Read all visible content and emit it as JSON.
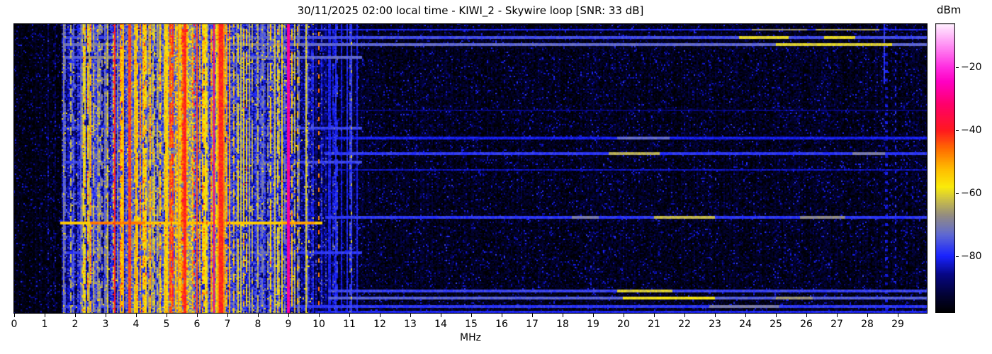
{
  "chart_data": {
    "type": "heatmap",
    "variant": "radio-spectrum-waterfall",
    "title": "30/11/2025 02:00 local time - KIWI_2 - Skywire loop [SNR: 33 dB]",
    "xlabel": "MHz",
    "x_range_mhz": [
      0,
      30
    ],
    "xticks": [
      0,
      1,
      2,
      3,
      4,
      5,
      6,
      7,
      8,
      9,
      10,
      11,
      12,
      13,
      14,
      15,
      16,
      17,
      18,
      19,
      20,
      21,
      22,
      23,
      24,
      25,
      26,
      27,
      28,
      29
    ],
    "yticks": [],
    "colorbar": {
      "label": "dBm",
      "ticks": [
        -20,
        -40,
        -60,
        -80
      ],
      "value_range_dbm": [
        -98,
        -6
      ]
    },
    "colormap_stops": [
      [
        0.0,
        0,
        0,
        0
      ],
      [
        0.055,
        2,
        2,
        46
      ],
      [
        0.13,
        6,
        6,
        130
      ],
      [
        0.196,
        25,
        35,
        255
      ],
      [
        0.27,
        95,
        105,
        210
      ],
      [
        0.34,
        150,
        142,
        125
      ],
      [
        0.4,
        212,
        200,
        60
      ],
      [
        0.435,
        250,
        235,
        10
      ],
      [
        0.5,
        255,
        185,
        0
      ],
      [
        0.565,
        255,
        110,
        0
      ],
      [
        0.63,
        255,
        25,
        30
      ],
      [
        0.72,
        255,
        0,
        105
      ],
      [
        0.8,
        255,
        0,
        195
      ],
      [
        0.85,
        255,
        45,
        225
      ],
      [
        0.93,
        255,
        150,
        245
      ],
      [
        1.0,
        255,
        240,
        255
      ]
    ],
    "noise_seed": 7,
    "bands": [
      {
        "f0": 0.0,
        "f1": 1.55,
        "base": -96,
        "noise": 3,
        "cv": 1.5,
        "sp": 0.05,
        "b0": 3,
        "b1": 7
      },
      {
        "f0": 1.55,
        "f1": 2.05,
        "base": -87,
        "noise": 6,
        "cv": 4,
        "sp": 0.45,
        "b0": 8,
        "b1": 24
      },
      {
        "f0": 2.05,
        "f1": 2.7,
        "base": -80,
        "noise": 7,
        "cv": 5,
        "sp": 0.55,
        "b0": 10,
        "b1": 30
      },
      {
        "f0": 2.7,
        "f1": 3.15,
        "base": -83,
        "noise": 7,
        "cv": 5,
        "sp": 0.45,
        "b0": 8,
        "b1": 26
      },
      {
        "f0": 3.15,
        "f1": 3.65,
        "base": -79,
        "noise": 7,
        "cv": 5,
        "sp": 0.55,
        "b0": 10,
        "b1": 34
      },
      {
        "f0": 3.65,
        "f1": 4.35,
        "base": -75,
        "noise": 8,
        "cv": 5,
        "sp": 0.6,
        "b0": 10,
        "b1": 32
      },
      {
        "f0": 4.35,
        "f1": 5.05,
        "base": -79,
        "noise": 8,
        "cv": 5,
        "sp": 0.55,
        "b0": 8,
        "b1": 28
      },
      {
        "f0": 5.05,
        "f1": 5.95,
        "base": -68,
        "noise": 9,
        "cv": 5,
        "sp": 0.7,
        "b0": 8,
        "b1": 26
      },
      {
        "f0": 5.95,
        "f1": 6.45,
        "base": -76,
        "noise": 8,
        "cv": 5,
        "sp": 0.5,
        "b0": 8,
        "b1": 24
      },
      {
        "f0": 6.45,
        "f1": 7.15,
        "base": -77,
        "noise": 8,
        "cv": 5,
        "sp": 0.55,
        "b0": 10,
        "b1": 30
      },
      {
        "f0": 7.15,
        "f1": 7.65,
        "base": -78,
        "noise": 8,
        "cv": 5,
        "sp": 0.5,
        "b0": 8,
        "b1": 24
      },
      {
        "f0": 7.65,
        "f1": 8.35,
        "base": -84,
        "noise": 7,
        "cv": 5,
        "sp": 0.45,
        "b0": 6,
        "b1": 20
      },
      {
        "f0": 8.35,
        "f1": 9.25,
        "base": -79,
        "noise": 8,
        "cv": 5,
        "sp": 0.5,
        "b0": 9,
        "b1": 26
      },
      {
        "f0": 9.25,
        "f1": 9.85,
        "base": -87,
        "noise": 6,
        "cv": 4,
        "sp": 0.35,
        "b0": 6,
        "b1": 20
      },
      {
        "f0": 9.85,
        "f1": 10.25,
        "base": -92,
        "noise": 5,
        "cv": 3,
        "sp": 0.15,
        "b0": 5,
        "b1": 12
      },
      {
        "f0": 10.25,
        "f1": 11.45,
        "base": -94,
        "noise": 4,
        "cv": 2,
        "sp": 0.12,
        "b0": 8,
        "b1": 16
      },
      {
        "f0": 11.45,
        "f1": 30.01,
        "base": -95,
        "noise": 4,
        "cv": 1.5,
        "sp": 0,
        "b0": 0,
        "b1": 0
      }
    ],
    "vertical_lines": [
      {
        "f": 1.3,
        "v": -88,
        "hw": 0.6,
        "dash": [
          3,
          9
        ]
      },
      {
        "f": 1.63,
        "v": -72,
        "hw": 0.6
      },
      {
        "f": 1.84,
        "v": -63,
        "hw": 0.6,
        "dash": [
          6,
          3
        ]
      },
      {
        "f": 2.2,
        "v": -74,
        "hw": 0.6
      },
      {
        "f": 2.48,
        "v": -64,
        "hw": 0.6
      },
      {
        "f": 2.75,
        "v": -70,
        "hw": 0.6,
        "dash": [
          5,
          6
        ]
      },
      {
        "f": 2.9,
        "v": -66,
        "hw": 0.6,
        "dash": [
          5,
          7
        ]
      },
      {
        "f": 3.07,
        "v": -68,
        "hw": 0.6,
        "dash": [
          4,
          8
        ]
      },
      {
        "f": 3.24,
        "v": -36,
        "hw": 0.6,
        "dash": [
          1,
          4
        ]
      },
      {
        "f": 3.3,
        "v": -41,
        "hw": 1.2
      },
      {
        "f": 3.58,
        "v": -52,
        "hw": 0.6
      },
      {
        "f": 3.78,
        "v": -43,
        "hw": 1.2
      },
      {
        "f": 3.98,
        "v": -52,
        "hw": 0.6
      },
      {
        "f": 4.25,
        "v": -60,
        "hw": 0.6,
        "dash": [
          8,
          5
        ]
      },
      {
        "f": 4.47,
        "v": -56,
        "hw": 0.6,
        "dash": [
          10,
          4
        ]
      },
      {
        "f": 5.0,
        "v": -55,
        "hw": 0.6
      },
      {
        "f": 5.38,
        "v": -50,
        "hw": 0.6
      },
      {
        "f": 5.62,
        "v": -41,
        "hw": 1.2
      },
      {
        "f": 5.92,
        "v": -36,
        "hw": 0.6,
        "dash": [
          2,
          6
        ]
      },
      {
        "f": 6.02,
        "v": -44,
        "hw": 0.6
      },
      {
        "f": 6.28,
        "v": -58,
        "hw": 0.6
      },
      {
        "f": 6.55,
        "v": -31,
        "hw": 0.6
      },
      {
        "f": 6.72,
        "v": -48,
        "hw": 0.6
      },
      {
        "f": 6.8,
        "v": -41,
        "hw": 2.2
      },
      {
        "f": 6.9,
        "v": -48,
        "hw": 0.6
      },
      {
        "f": 7.05,
        "v": -52,
        "hw": 0.6
      },
      {
        "f": 7.2,
        "v": -54,
        "hw": 0.6,
        "dash": [
          6,
          6
        ]
      },
      {
        "f": 7.45,
        "v": -62,
        "hw": 0.6
      },
      {
        "f": 7.7,
        "v": -64,
        "hw": 0.6
      },
      {
        "f": 8.0,
        "v": -63,
        "hw": 0.6,
        "dash": [
          3,
          5
        ]
      },
      {
        "f": 8.57,
        "v": -62,
        "hw": 0.6
      },
      {
        "f": 8.78,
        "v": -60,
        "hw": 0.6
      },
      {
        "f": 9.0,
        "v": -28,
        "hw": 1.2
      },
      {
        "f": 9.3,
        "v": -52,
        "hw": 0.6,
        "dash": [
          4,
          8
        ]
      },
      {
        "f": 9.58,
        "v": -61,
        "hw": 0.6
      },
      {
        "f": 10.0,
        "v": -47,
        "hw": 0.6,
        "dash": [
          3,
          7
        ]
      },
      {
        "f": 10.35,
        "v": -81,
        "hw": 0.6
      },
      {
        "f": 10.55,
        "v": -79,
        "hw": 0.6
      },
      {
        "f": 10.75,
        "v": -82,
        "hw": 0.6
      },
      {
        "f": 10.93,
        "v": -80,
        "hw": 0.6
      },
      {
        "f": 11.07,
        "v": -77,
        "hw": 1.2
      },
      {
        "f": 11.07,
        "v": -62,
        "hw": 0.6,
        "dash": [
          2,
          18
        ]
      },
      {
        "f": 11.27,
        "v": -81,
        "hw": 0.6
      },
      {
        "f": 28.57,
        "v": -78,
        "hw": 0.6,
        "y0": 0,
        "y1": 0.21
      },
      {
        "f": 28.63,
        "v": -82,
        "hw": 0.6,
        "dash": [
          2,
          4
        ]
      },
      {
        "f": 28.95,
        "v": -80,
        "hw": 0.6,
        "dash": [
          2,
          4
        ]
      },
      {
        "f": 29.3,
        "v": -84,
        "hw": 0.6,
        "dash": [
          2,
          5
        ]
      }
    ],
    "horizontal_lines": [
      {
        "y": 0.022,
        "f0": 1.6,
        "f1": 30,
        "v": -80,
        "segs": [
          [
            24.2,
            26.0,
            -66
          ],
          [
            26.3,
            28.4,
            -64
          ]
        ]
      },
      {
        "y": 0.048,
        "f0": 1.6,
        "f1": 30,
        "v": -76,
        "segs": [
          [
            23.8,
            25.4,
            -60
          ],
          [
            26.6,
            27.6,
            -60
          ]
        ]
      },
      {
        "y": 0.075,
        "f0": 1.6,
        "f1": 30,
        "v": -73,
        "segs": [
          [
            25.0,
            28.8,
            -61
          ],
          [
            2.0,
            9.5,
            -72
          ]
        ]
      },
      {
        "y": 0.115,
        "f0": 1.6,
        "f1": 11.4,
        "v": -73,
        "segs": [
          [
            2.2,
            4.5,
            -68
          ]
        ]
      },
      {
        "y": 0.3,
        "f0": 10.2,
        "f1": 30,
        "v": -87,
        "segs": []
      },
      {
        "y": 0.36,
        "f0": 1.6,
        "f1": 11.4,
        "v": -77,
        "segs": []
      },
      {
        "y": 0.395,
        "f0": 10.2,
        "f1": 30,
        "v": -81,
        "segs": [
          [
            19.8,
            21.5,
            -73
          ]
        ]
      },
      {
        "y": 0.45,
        "f0": 10.2,
        "f1": 30,
        "v": -78,
        "segs": [
          [
            19.5,
            21.2,
            -64
          ],
          [
            27.5,
            28.6,
            -70
          ]
        ]
      },
      {
        "y": 0.48,
        "f0": 1.6,
        "f1": 11.4,
        "v": -77,
        "segs": []
      },
      {
        "y": 0.505,
        "f0": 10.5,
        "f1": 30,
        "v": -83,
        "segs": []
      },
      {
        "y": 0.668,
        "f0": 10.2,
        "f1": 30,
        "v": -78,
        "segs": [
          [
            18.3,
            19.2,
            -70
          ],
          [
            21.0,
            23.0,
            -63
          ],
          [
            25.8,
            27.3,
            -68
          ]
        ]
      },
      {
        "y": 0.688,
        "f0": 1.5,
        "f1": 10.1,
        "v": -54,
        "segs": [
          [
            2.5,
            4.3,
            -47
          ],
          [
            8.8,
            9.9,
            -50
          ]
        ]
      },
      {
        "y": 0.79,
        "f0": 1.6,
        "f1": 11.4,
        "v": -78,
        "segs": []
      },
      {
        "y": 0.92,
        "f0": 10.3,
        "f1": 30,
        "v": -77,
        "segs": [
          [
            19.8,
            21.6,
            -61
          ]
        ]
      },
      {
        "y": 0.945,
        "f0": 10.3,
        "f1": 30,
        "v": -74,
        "segs": [
          [
            20.0,
            23.0,
            -59
          ],
          [
            25.0,
            26.2,
            -66
          ]
        ]
      },
      {
        "y": 0.975,
        "f0": 1.6,
        "f1": 30,
        "v": -78,
        "segs": [
          [
            22.8,
            25.1,
            -70
          ]
        ]
      },
      {
        "y": 0.993,
        "f0": 9.9,
        "f1": 30,
        "v": -80,
        "segs": []
      }
    ]
  }
}
